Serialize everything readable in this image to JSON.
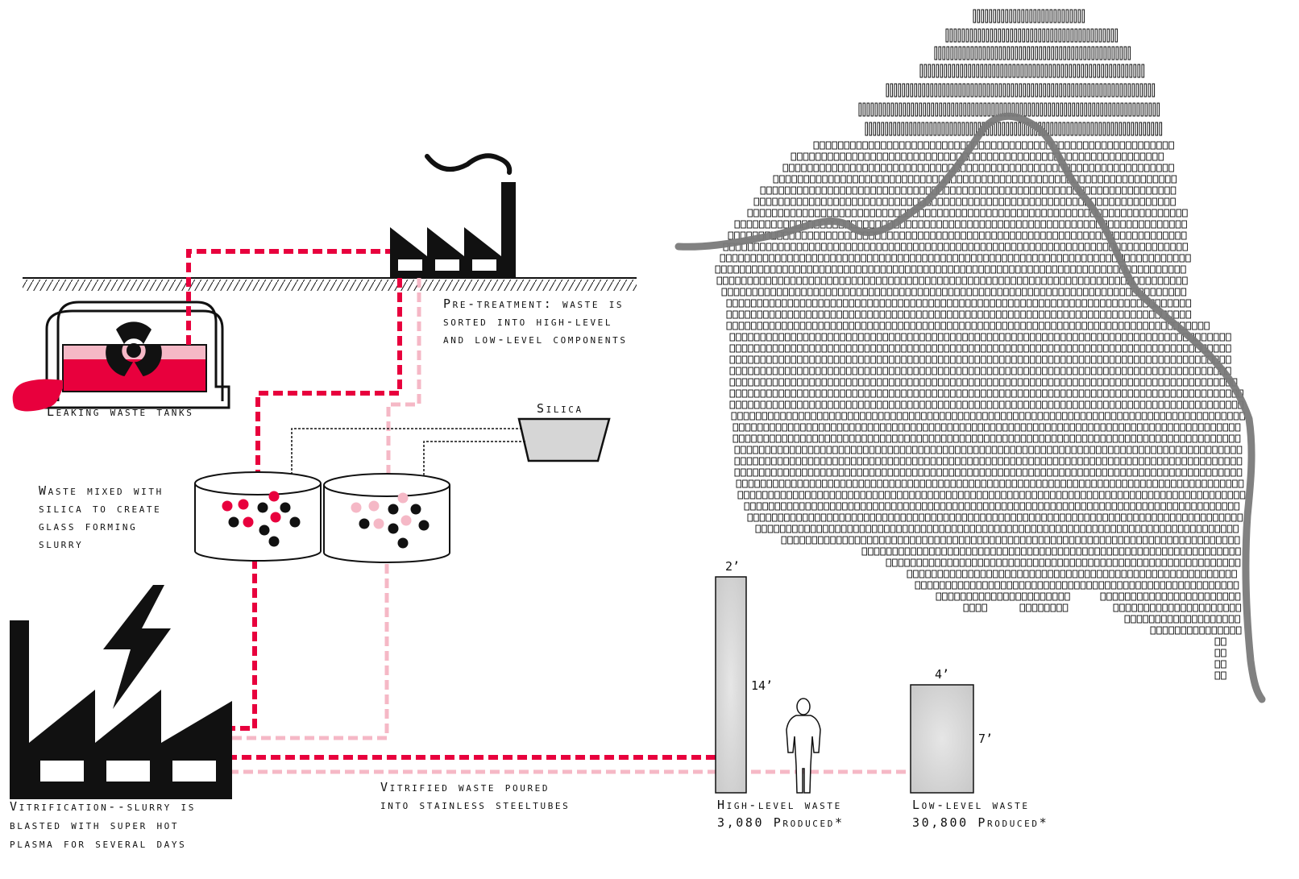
{
  "labels": {
    "leaking_tanks": "Leaking waste tanks",
    "pretreatment": [
      "Pre-treatment: waste is",
      "sorted into high-level",
      "and low-level components"
    ],
    "silica": "Silica",
    "mixing": [
      "Waste mixed with",
      "silica to create",
      "glass forming",
      "slurry"
    ],
    "vitrification": [
      "Vitrification--slurry is",
      "blasted with super hot",
      "plasma for several days"
    ],
    "poured": [
      "Vitrified waste poured",
      "into stainless steeltubes"
    ],
    "high_level": [
      "High-level waste",
      "3,080 Produced*"
    ],
    "low_level": [
      "Low-level waste",
      "30,800 Produced*"
    ]
  },
  "dimensions": {
    "high_width": "2’",
    "high_height": "14’",
    "low_width": "4’",
    "low_height": "7’"
  },
  "colors": {
    "high_level": "#e8003d",
    "low_level": "#f5b8c6",
    "ink": "#111111",
    "river": "#7a7a7a",
    "tube": "#d4d4d4"
  },
  "icons": [
    "radiation-icon",
    "factory-icon",
    "lightning-icon",
    "person-icon"
  ]
}
